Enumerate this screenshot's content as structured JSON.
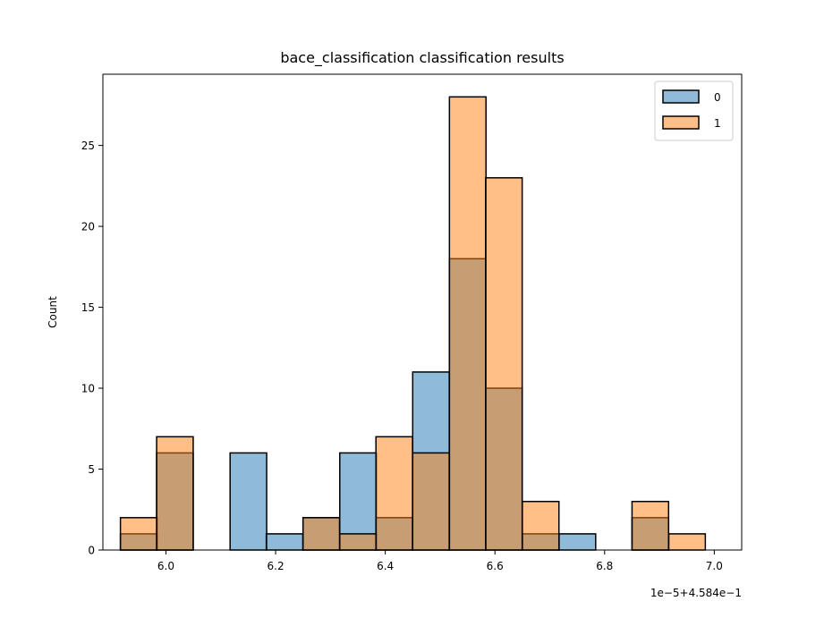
{
  "chart_data": {
    "type": "bar",
    "title": "bace_classification classification results",
    "xlabel": "",
    "ylabel": "Count",
    "x_offset_label": "1e−5+4.584e−1",
    "xlim": [
      5.885,
      7.05
    ],
    "ylim": [
      0,
      29.4
    ],
    "x_ticks": [
      6.0,
      6.2,
      6.4,
      6.6,
      6.8,
      7.0
    ],
    "x_tick_labels": [
      "6.0",
      "6.2",
      "6.4",
      "6.6",
      "6.8",
      "7.0"
    ],
    "y_ticks": [
      0,
      5,
      10,
      15,
      20,
      25
    ],
    "y_tick_labels": [
      "0",
      "5",
      "10",
      "15",
      "20",
      "25"
    ],
    "bin_width": 0.0667,
    "bins": [
      5.917,
      5.983,
      6.05,
      6.117,
      6.183,
      6.25,
      6.317,
      6.383,
      6.45,
      6.517,
      6.583,
      6.65,
      6.717,
      6.783,
      6.85,
      6.917
    ],
    "series": [
      {
        "name": "0",
        "color": "#1f77b4",
        "values": [
          1,
          6,
          0,
          6,
          1,
          2,
          6,
          2,
          11,
          18,
          10,
          1,
          1,
          0,
          2,
          0
        ]
      },
      {
        "name": "1",
        "color": "#ff7f0e",
        "values": [
          2,
          7,
          0,
          0,
          0,
          2,
          1,
          7,
          6,
          28,
          23,
          3,
          0,
          0,
          3,
          1
        ]
      }
    ],
    "legend_placement": "top-right",
    "grid": false
  }
}
